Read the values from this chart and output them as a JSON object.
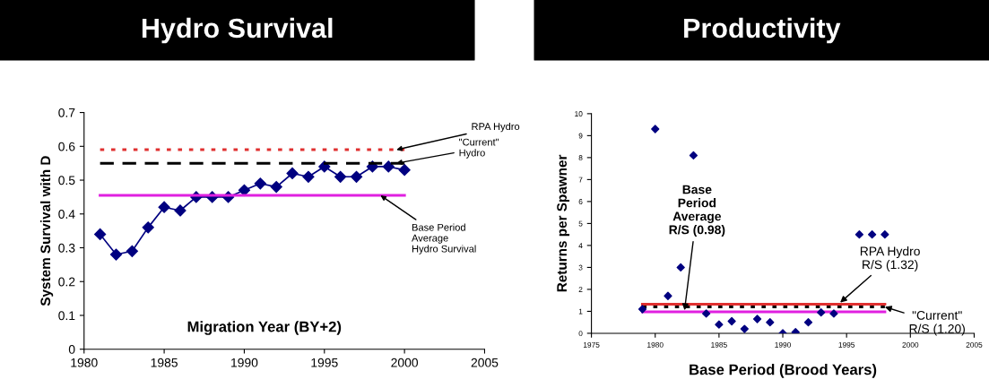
{
  "chart_data": [
    {
      "type": "line",
      "title": "Hydro Survival",
      "xlabel": "Migration Year (BY+2)",
      "ylabel": "System Survival with D",
      "xlim": [
        1980,
        2005
      ],
      "xticks": [
        1980,
        1985,
        1990,
        1995,
        2000,
        2005
      ],
      "ylim": [
        0,
        0.7
      ],
      "yticks": [
        0,
        0.1,
        0.2,
        0.3,
        0.4,
        0.5,
        0.6,
        0.7
      ],
      "grid": false,
      "legend": false,
      "series": [
        {
          "color": "#000080",
          "marker": "diamond",
          "line_style": "solid",
          "x": [
            1981,
            1982,
            1983,
            1984,
            1985,
            1986,
            1987,
            1988,
            1989,
            1990,
            1991,
            1992,
            1993,
            1994,
            1995,
            1996,
            1997,
            1998,
            1999,
            2000
          ],
          "values": [
            0.34,
            0.28,
            0.29,
            0.36,
            0.42,
            0.41,
            0.45,
            0.45,
            0.45,
            0.47,
            0.49,
            0.48,
            0.52,
            0.51,
            0.54,
            0.51,
            0.51,
            0.54,
            0.54,
            0.53
          ]
        },
        {
          "type": "line",
          "color": "#e03030",
          "marker": "none",
          "line_style": "dotted",
          "x": [
            1981,
            2000
          ],
          "values": [
            0.59,
            0.59
          ]
        },
        {
          "type": "line",
          "color": "#000000",
          "marker": "none",
          "line_style": "dashed",
          "x": [
            1981,
            2000
          ],
          "values": [
            0.55,
            0.55
          ]
        },
        {
          "type": "line",
          "color": "#e020e0",
          "marker": "none",
          "line_style": "solid",
          "x": [
            1981,
            2000
          ],
          "values": [
            0.455,
            0.455
          ]
        }
      ],
      "annotations": [
        {
          "text": "RPA Hydro",
          "x": 1999.5,
          "y": 0.59
        },
        {
          "text": "\"Current\"\nHydro",
          "x": 1999.5,
          "y": 0.55
        },
        {
          "text": "Base Period\nAverage\nHydro Survival",
          "x": 1998.5,
          "y": 0.455
        }
      ]
    },
    {
      "type": "scatter",
      "title": "Productivity",
      "xlabel": "Base Period (Brood Years)",
      "ylabel": "Returns per Spawner",
      "xlim": [
        1975,
        2005
      ],
      "xticks": [
        1975,
        1980,
        1985,
        1990,
        1995,
        2000,
        2005
      ],
      "ylim": [
        0,
        10
      ],
      "yticks": [
        0,
        1,
        2,
        3,
        4,
        5,
        6,
        7,
        8,
        9,
        10
      ],
      "grid": false,
      "legend": false,
      "series": [
        {
          "color": "#000080",
          "marker": "diamond",
          "x": [
            1979,
            1980,
            1981,
            1982,
            1983,
            1984,
            1985,
            1986,
            1987,
            1988,
            1989,
            1990,
            1991,
            1992,
            1993,
            1994,
            1996,
            1997,
            1998
          ],
          "values": [
            1.1,
            9.3,
            1.7,
            3.0,
            8.1,
            0.9,
            0.4,
            0.55,
            0.2,
            0.65,
            0.5,
            0.0,
            0.05,
            0.5,
            0.95,
            0.9,
            4.5,
            4.5,
            4.5
          ]
        },
        {
          "type": "line",
          "color": "#e03030",
          "marker": "none",
          "line_style": "solid",
          "x": [
            1979,
            1998
          ],
          "values": [
            1.32,
            1.32
          ]
        },
        {
          "type": "line",
          "color": "#000000",
          "marker": "none",
          "line_style": "dotted",
          "x": [
            1979,
            1998
          ],
          "values": [
            1.2,
            1.2
          ]
        },
        {
          "type": "line",
          "color": "#e020e0",
          "marker": "none",
          "line_style": "solid",
          "x": [
            1979,
            1998
          ],
          "values": [
            0.98,
            0.98
          ]
        }
      ],
      "annotations": [
        {
          "text": "Base\nPeriod\nAverage\nR/S (0.98)",
          "x": 1982.3,
          "y": 1.05
        },
        {
          "text": "RPA Hydro\nR/S (1.32)",
          "x": 1994.5,
          "y": 1.4
        },
        {
          "text": "\"Current\"\nR/S (1.20)",
          "x": 1998,
          "y": 1.2
        }
      ]
    }
  ]
}
